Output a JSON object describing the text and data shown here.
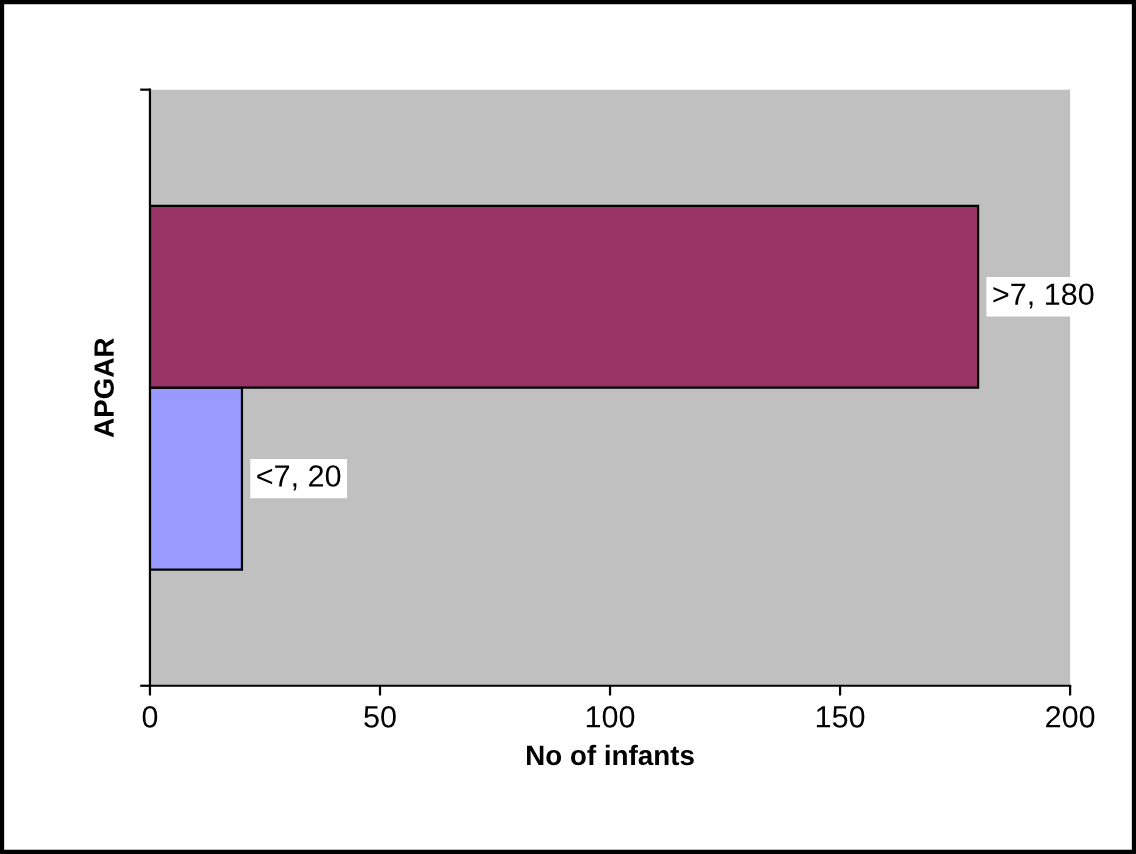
{
  "chart_data": {
    "type": "bar",
    "orientation": "horizontal",
    "xlabel": "No of infants",
    "ylabel": "APGAR",
    "categories": [
      null
    ],
    "series": [
      {
        "color": "#9999ff",
        "values": [
          20
        ],
        "value_labels": [
          "<7, 20"
        ]
      },
      {
        "color": "#993366",
        "values": [
          180
        ],
        "value_labels": [
          ">7, 180"
        ]
      }
    ],
    "xlim": [
      0,
      200
    ],
    "xticks": [
      0,
      50,
      100,
      150,
      200
    ],
    "grid": false,
    "legend": false
  }
}
